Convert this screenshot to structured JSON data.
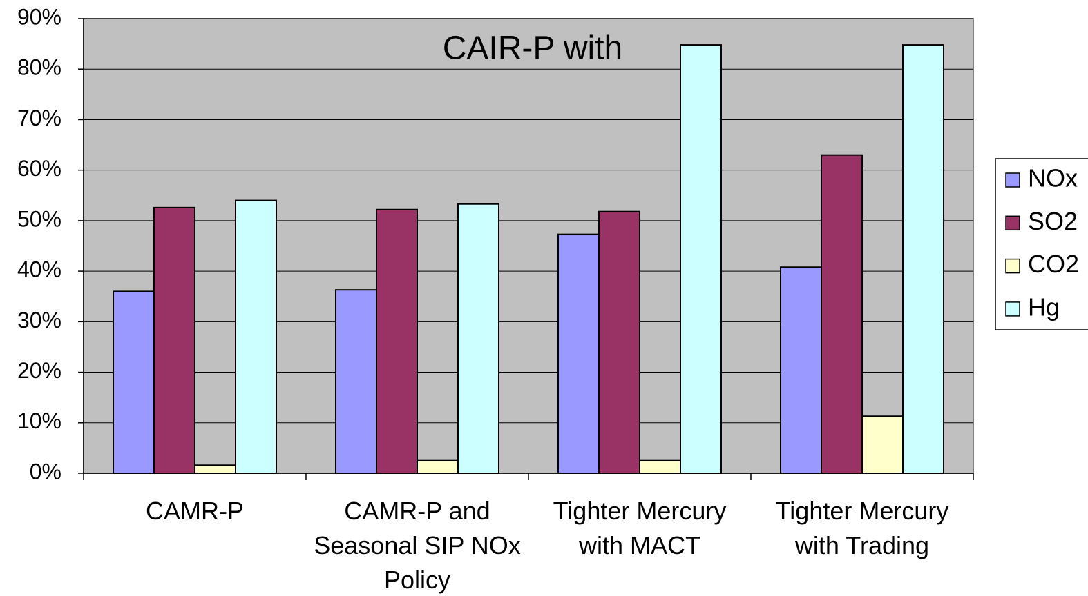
{
  "chart_data": {
    "type": "bar",
    "title": "CAIR-P with",
    "categories": [
      "CAMR-P",
      "CAMR-P and Seasonal SIP NOx Policy",
      "Tighter Mercury with MACT",
      "Tighter Mercury with Trading"
    ],
    "series": [
      {
        "name": "NOx",
        "color": "#9999ff",
        "values": [
          36,
          36.3,
          47.3,
          40.8
        ]
      },
      {
        "name": "SO2",
        "color": "#993366",
        "values": [
          52.6,
          52.2,
          51.8,
          63
        ]
      },
      {
        "name": "CO2",
        "color": "#ffffcc",
        "values": [
          1.6,
          2.5,
          2.5,
          11.3
        ]
      },
      {
        "name": "Hg",
        "color": "#ccffff",
        "values": [
          54,
          53.3,
          84.8,
          84.8
        ]
      }
    ],
    "ylim": [
      0,
      90
    ],
    "yticks": [
      {
        "value": 0,
        "label": "0%"
      },
      {
        "value": 10,
        "label": "10%"
      },
      {
        "value": 20,
        "label": "20%"
      },
      {
        "value": 30,
        "label": "30%"
      },
      {
        "value": 40,
        "label": "40%"
      },
      {
        "value": 50,
        "label": "50%"
      },
      {
        "value": 60,
        "label": "60%"
      },
      {
        "value": 70,
        "label": "70%"
      },
      {
        "value": 80,
        "label": "80%"
      },
      {
        "value": 90,
        "label": "90%"
      }
    ],
    "grid": true,
    "legend": "right"
  }
}
